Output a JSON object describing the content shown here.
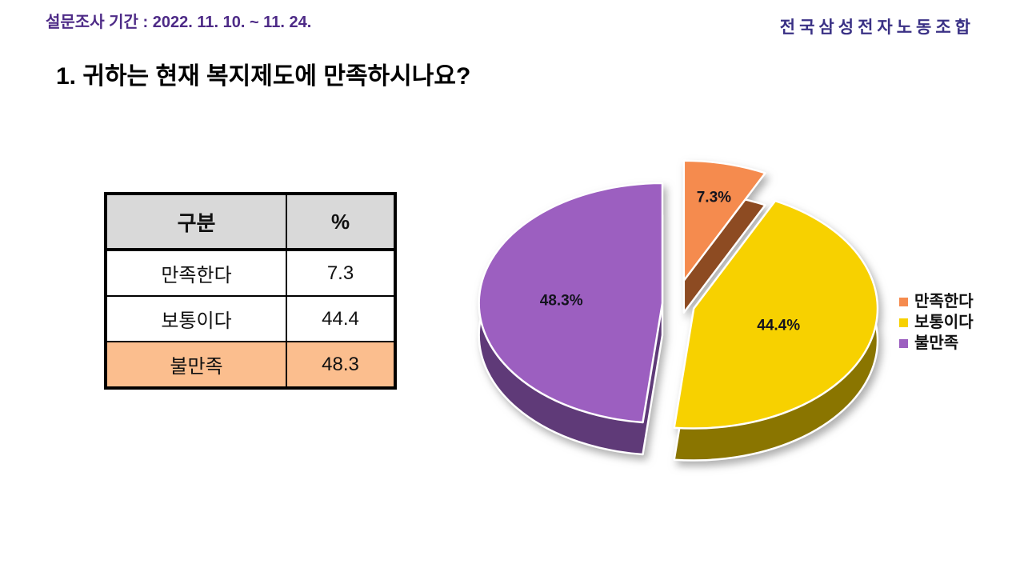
{
  "header": {
    "survey_period": "설문조사 기간 : 2022. 11. 10. ~ 11. 24.",
    "organization": "전국삼성전자노동조합"
  },
  "title": "1. 귀하는 현재 복지제도에 만족하시나요?",
  "table": {
    "columns": [
      "구분",
      "%"
    ],
    "rows": [
      {
        "label": "만족한다",
        "value": "7.3",
        "highlight": false
      },
      {
        "label": "보통이다",
        "value": "44.4",
        "highlight": false
      },
      {
        "label": "불만족",
        "value": "48.3",
        "highlight": true
      }
    ],
    "header_bg": "#D9D9D9",
    "highlight_bg": "#FBBE8E"
  },
  "chart_data": {
    "type": "pie",
    "style": "3d-exploded",
    "categories": [
      "만족한다",
      "보통이다",
      "불만족"
    ],
    "values": [
      7.3,
      44.4,
      48.3
    ],
    "labels": [
      "7.3%",
      "44.4%",
      "48.3%"
    ],
    "colors": [
      "#F58B4E",
      "#F7D100",
      "#9C5FC0"
    ],
    "side_colors": [
      "#8D4B22",
      "#8A7500",
      "#5F3A78"
    ],
    "start_angle_deg": 0,
    "direction": "clockwise-from-top",
    "legend_position": "right",
    "label_color": "#14141E",
    "outline_color": "#FFFFFF"
  }
}
